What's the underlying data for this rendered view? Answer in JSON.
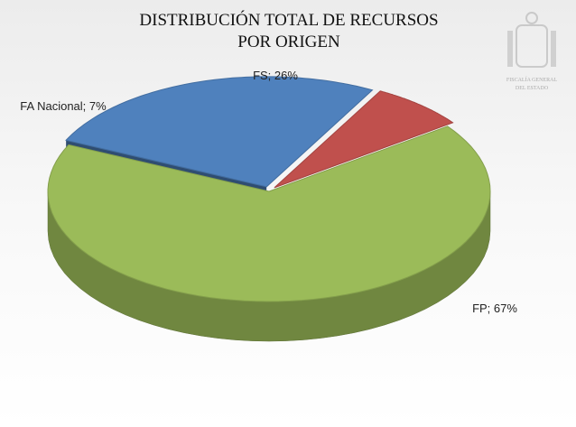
{
  "chart_data": {
    "type": "pie",
    "title": [
      "DISTRIBUCIÓN TOTAL DE RECURSOS",
      "POR ORIGEN"
    ],
    "values": [
      26,
      7,
      67
    ],
    "value_labels": [
      "FS; 26%",
      "FA Nacional; 7%",
      "FP; 67%"
    ],
    "colors": [
      "#4f81bd",
      "#c0504d",
      "#9bbb59"
    ],
    "logo_text": [
      "FISCALÍA GENERAL",
      "DEL ESTADO"
    ]
  }
}
